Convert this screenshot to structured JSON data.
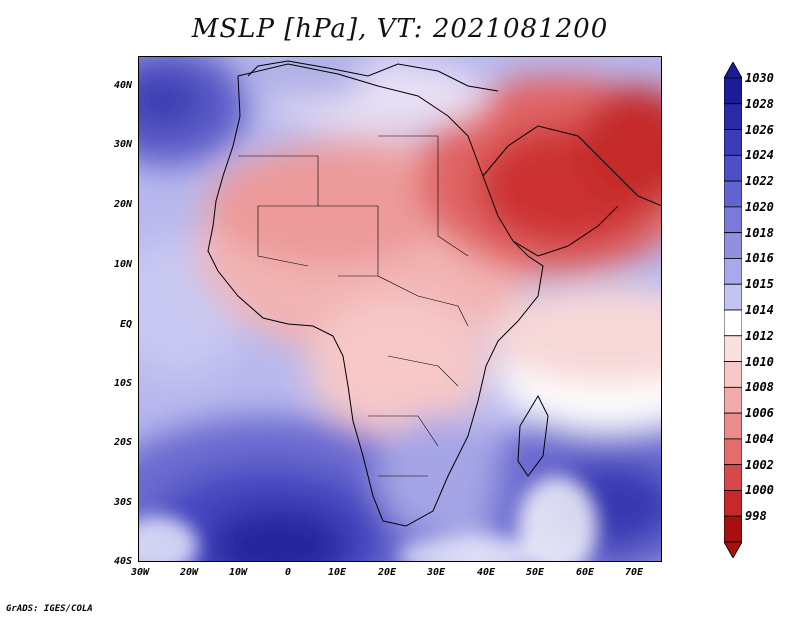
{
  "title": "MSLP [hPa], VT: 2021081200",
  "credit": "GrADS: IGES/COLA",
  "axes": {
    "y_labels": [
      "40N",
      "30N",
      "20N",
      "10N",
      "EQ",
      "10S",
      "20S",
      "30S",
      "40S"
    ],
    "x_labels": [
      "30W",
      "20W",
      "10W",
      "0",
      "10E",
      "20E",
      "30E",
      "40E",
      "50E",
      "60E",
      "70E"
    ]
  },
  "colorbar": {
    "levels": [
      "1030",
      "1028",
      "1026",
      "1024",
      "1022",
      "1020",
      "1018",
      "1016",
      "1015",
      "1014",
      "1012",
      "1010",
      "1008",
      "1006",
      "1004",
      "1002",
      "1000",
      "998"
    ],
    "colors": [
      "#1c1c98",
      "#2a2aaa",
      "#3c3cba",
      "#4e4ec6",
      "#6464d0",
      "#7a7ad8",
      "#9090e0",
      "#a8a8ea",
      "#c4c4f2",
      "#ffffff",
      "#fbe0e0",
      "#f8c8c8",
      "#f2aaaa",
      "#ec8c8c",
      "#e46c6c",
      "#d84848",
      "#c82828",
      "#a81010"
    ]
  }
}
